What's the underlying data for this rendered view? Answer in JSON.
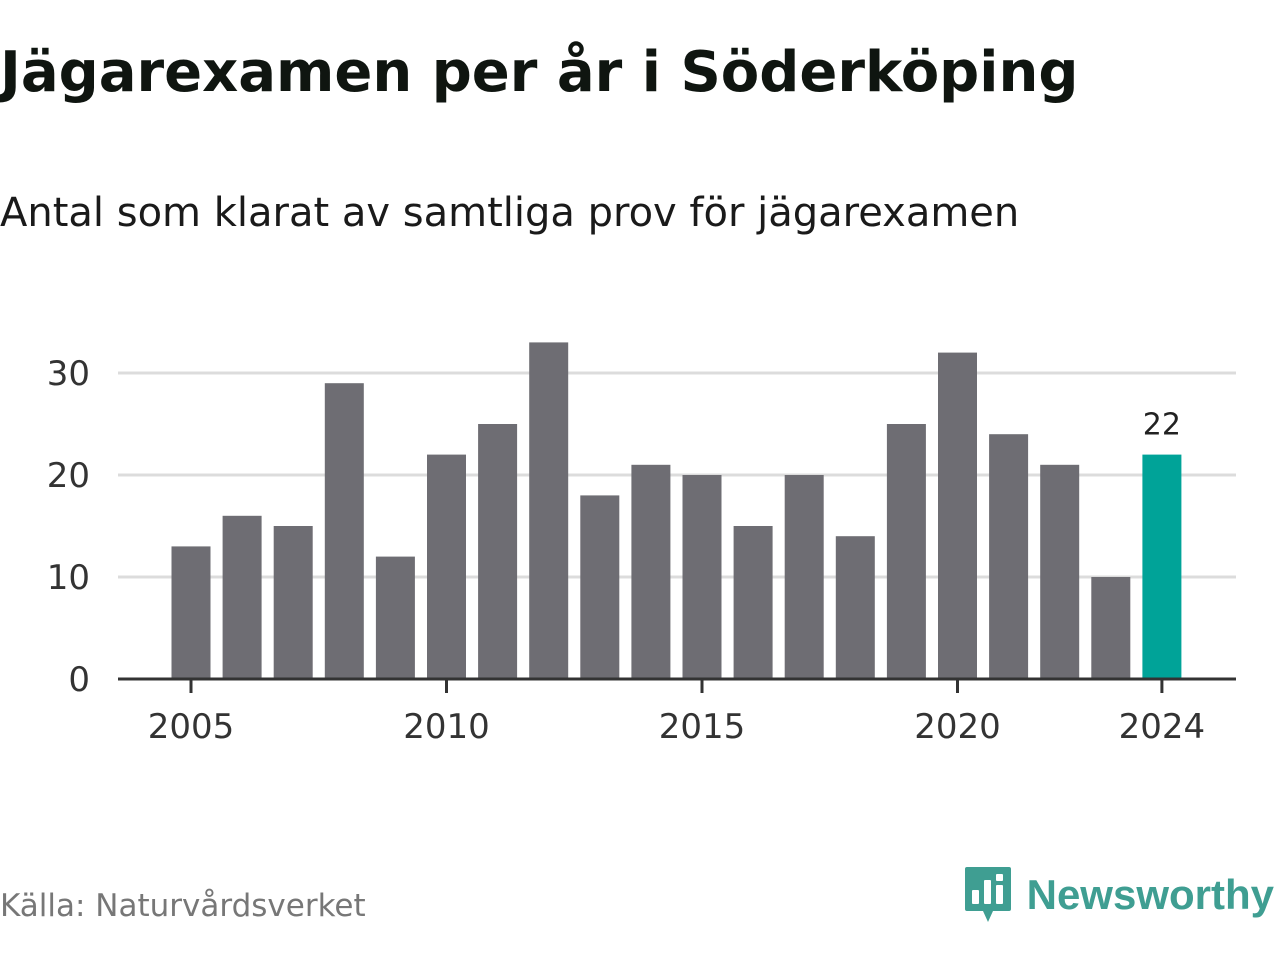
{
  "header": {
    "title": "Jägarexamen per år i Söderköping",
    "subtitle": "Antal som klarat av samtliga prov för jägarexamen"
  },
  "footer": {
    "source": "Källa: Naturvårdsverket",
    "brand": "Newsworthy",
    "brand_icon": "bar-chart-speech-bubble-icon"
  },
  "colors": {
    "bar": "#6e6d73",
    "highlight": "#00a398",
    "grid": "#dcdcdc",
    "axis": "#333333",
    "brand": "#3f9e92"
  },
  "chart_data": {
    "type": "bar",
    "title": "Jägarexamen per år i Söderköping",
    "subtitle": "Antal som klarat av samtliga prov för jägarexamen",
    "xlabel": "",
    "ylabel": "",
    "categories": [
      2005,
      2006,
      2007,
      2008,
      2009,
      2010,
      2011,
      2012,
      2013,
      2014,
      2015,
      2016,
      2017,
      2018,
      2019,
      2020,
      2021,
      2022,
      2023,
      2024
    ],
    "values": [
      13,
      16,
      15,
      29,
      12,
      22,
      25,
      33,
      18,
      21,
      20,
      15,
      20,
      14,
      25,
      32,
      24,
      21,
      10,
      22
    ],
    "highlight": {
      "category": 2024,
      "label": "22"
    },
    "x_ticks": [
      "2005",
      "2010",
      "2015",
      "2020",
      "2024"
    ],
    "y_ticks": [
      "0",
      "10",
      "20",
      "30"
    ],
    "ylim": [
      0,
      33
    ],
    "grid": true,
    "legend": "none"
  }
}
